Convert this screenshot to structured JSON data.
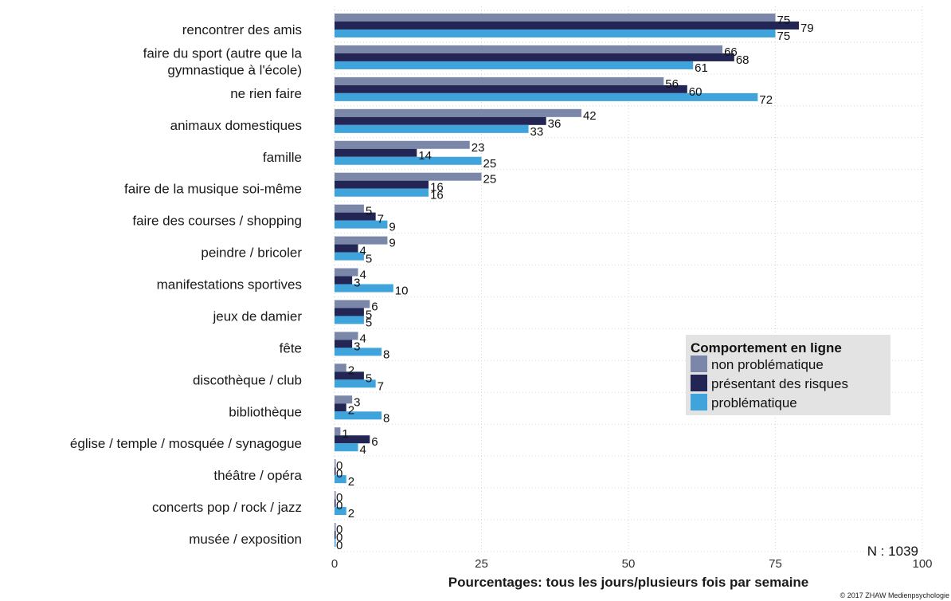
{
  "chart_data": {
    "type": "bar",
    "orientation": "horizontal",
    "categories": [
      "rencontrer des amis",
      [
        "faire du sport (autre que la",
        "gymnastique à l'école)"
      ],
      "ne rien faire",
      "animaux domestiques",
      "famille",
      "faire de la musique soi-même",
      "faire des courses / shopping",
      "peindre / bricoler",
      "manifestations sportives",
      "jeux de damier",
      "fête",
      "discothèque / club",
      "bibliothèque",
      "église / temple / mosquée / synagogue",
      "théâtre  / opéra",
      "concerts pop / rock / jazz",
      "musée / exposition"
    ],
    "series": [
      {
        "name": "non problématique",
        "color": "#7b87a8",
        "values": [
          75,
          66,
          56,
          42,
          23,
          25,
          5,
          9,
          4,
          6,
          4,
          2,
          3,
          1,
          0,
          0,
          0
        ]
      },
      {
        "name": "présentant des risques",
        "color": "#232654",
        "values": [
          79,
          68,
          60,
          36,
          14,
          16,
          7,
          4,
          3,
          5,
          3,
          5,
          2,
          6,
          0,
          0,
          0
        ]
      },
      {
        "name": "problématique",
        "color": "#3fa3dc",
        "values": [
          75,
          61,
          72,
          33,
          25,
          16,
          9,
          5,
          10,
          5,
          8,
          7,
          8,
          4,
          2,
          2,
          0
        ]
      }
    ],
    "xlabel": "Pourcentages: tous les jours/plusieurs fois par semaine",
    "xlim": [
      0,
      100
    ],
    "xticks": [
      0,
      25,
      50,
      75,
      100
    ],
    "legend": {
      "title": "Comportement en ligne",
      "placement": "right"
    },
    "grid": true,
    "note": "N : 1039",
    "copyright": "© 2017 ZHAW Medienpsychologie"
  }
}
